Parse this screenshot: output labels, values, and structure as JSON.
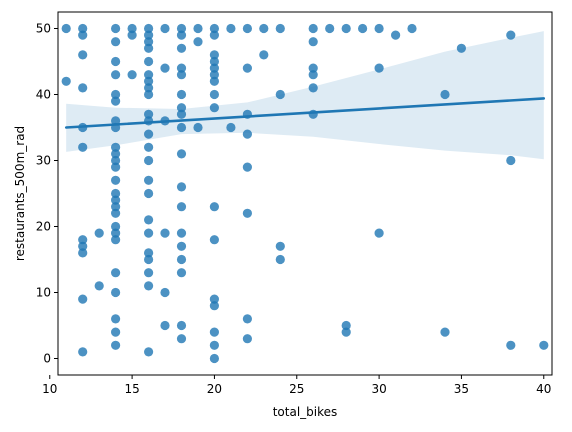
{
  "chart_data": {
    "type": "scatter",
    "title": "",
    "xlabel": "total_bikes",
    "ylabel": "restaurants_500m_rad",
    "xlim": [
      10.5,
      40.5
    ],
    "ylim": [
      -2.5,
      52.5
    ],
    "xticks": [
      10,
      15,
      20,
      25,
      30,
      35,
      40
    ],
    "yticks": [
      0,
      10,
      20,
      30,
      40,
      50
    ],
    "grid": false,
    "colors": {
      "points": "#1f77b4",
      "line": "#1f77b4",
      "band": "#1f77b4"
    },
    "point_opacity": 0.8,
    "band_opacity": 0.15,
    "regression": {
      "x": [
        11,
        40
      ],
      "y": [
        35.0,
        39.4
      ],
      "ci_upper": [
        38.6,
        49.6
      ],
      "ci_lower": [
        31.3,
        30.2
      ],
      "ci_mid_x": [
        14,
        18,
        22,
        26,
        30,
        34,
        38
      ],
      "ci_mid_upper": [
        38.0,
        37.8,
        38.8,
        41.2,
        43.8,
        46.5,
        48.6
      ],
      "ci_mid_lower": [
        32.3,
        34.0,
        34.2,
        33.6,
        32.5,
        31.5,
        30.8
      ]
    },
    "points": [
      [
        11,
        50
      ],
      [
        11,
        42
      ],
      [
        12,
        50
      ],
      [
        12,
        49
      ],
      [
        12,
        46
      ],
      [
        12,
        41
      ],
      [
        12,
        35
      ],
      [
        12,
        32
      ],
      [
        12,
        18
      ],
      [
        12,
        17
      ],
      [
        12,
        16
      ],
      [
        12,
        9
      ],
      [
        12,
        1
      ],
      [
        13,
        19
      ],
      [
        13,
        11
      ],
      [
        14,
        50
      ],
      [
        14,
        48
      ],
      [
        14,
        45
      ],
      [
        14,
        43
      ],
      [
        14,
        40
      ],
      [
        14,
        39
      ],
      [
        14,
        36
      ],
      [
        14,
        35
      ],
      [
        14,
        32
      ],
      [
        14,
        31
      ],
      [
        14,
        30
      ],
      [
        14,
        29
      ],
      [
        14,
        27
      ],
      [
        14,
        25
      ],
      [
        14,
        24
      ],
      [
        14,
        23
      ],
      [
        14,
        22
      ],
      [
        14,
        20
      ],
      [
        14,
        19
      ],
      [
        14,
        18
      ],
      [
        14,
        13
      ],
      [
        14,
        10
      ],
      [
        14,
        6
      ],
      [
        14,
        4
      ],
      [
        14,
        2
      ],
      [
        15,
        50
      ],
      [
        15,
        49
      ],
      [
        15,
        43
      ],
      [
        16,
        50
      ],
      [
        16,
        49
      ],
      [
        16,
        48
      ],
      [
        16,
        47
      ],
      [
        16,
        45
      ],
      [
        16,
        43
      ],
      [
        16,
        42
      ],
      [
        16,
        41
      ],
      [
        16,
        40
      ],
      [
        16,
        37
      ],
      [
        16,
        36
      ],
      [
        16,
        34
      ],
      [
        16,
        32
      ],
      [
        16,
        30
      ],
      [
        16,
        27
      ],
      [
        16,
        25
      ],
      [
        16,
        21
      ],
      [
        16,
        19
      ],
      [
        16,
        16
      ],
      [
        16,
        15
      ],
      [
        16,
        13
      ],
      [
        16,
        11
      ],
      [
        16,
        1
      ],
      [
        17,
        50
      ],
      [
        17,
        44
      ],
      [
        17,
        36
      ],
      [
        17,
        19
      ],
      [
        17,
        10
      ],
      [
        17,
        5
      ],
      [
        18,
        50
      ],
      [
        18,
        49
      ],
      [
        18,
        47
      ],
      [
        18,
        44
      ],
      [
        18,
        43
      ],
      [
        18,
        40
      ],
      [
        18,
        38
      ],
      [
        18,
        37
      ],
      [
        18,
        35
      ],
      [
        18,
        31
      ],
      [
        18,
        26
      ],
      [
        18,
        23
      ],
      [
        18,
        19
      ],
      [
        18,
        17
      ],
      [
        18,
        15
      ],
      [
        18,
        13
      ],
      [
        18,
        5
      ],
      [
        18,
        3
      ],
      [
        19,
        50
      ],
      [
        19,
        48
      ],
      [
        19,
        35
      ],
      [
        20,
        50
      ],
      [
        20,
        49
      ],
      [
        20,
        46
      ],
      [
        20,
        45
      ],
      [
        20,
        44
      ],
      [
        20,
        43
      ],
      [
        20,
        42
      ],
      [
        20,
        40
      ],
      [
        20,
        38
      ],
      [
        20,
        23
      ],
      [
        20,
        18
      ],
      [
        20,
        9
      ],
      [
        20,
        8
      ],
      [
        20,
        4
      ],
      [
        20,
        2
      ],
      [
        20,
        0
      ],
      [
        21,
        50
      ],
      [
        21,
        35
      ],
      [
        22,
        50
      ],
      [
        22,
        44
      ],
      [
        22,
        37
      ],
      [
        22,
        34
      ],
      [
        22,
        29
      ],
      [
        22,
        22
      ],
      [
        22,
        6
      ],
      [
        22,
        3
      ],
      [
        23,
        50
      ],
      [
        23,
        46
      ],
      [
        24,
        50
      ],
      [
        24,
        40
      ],
      [
        24,
        17
      ],
      [
        24,
        15
      ],
      [
        26,
        50
      ],
      [
        26,
        48
      ],
      [
        26,
        44
      ],
      [
        26,
        43
      ],
      [
        26,
        41
      ],
      [
        26,
        37
      ],
      [
        27,
        50
      ],
      [
        28,
        50
      ],
      [
        28,
        5
      ],
      [
        28,
        4
      ],
      [
        29,
        50
      ],
      [
        30,
        50
      ],
      [
        30,
        44
      ],
      [
        30,
        19
      ],
      [
        31,
        49
      ],
      [
        32,
        50
      ],
      [
        34,
        40
      ],
      [
        34,
        4
      ],
      [
        35,
        47
      ],
      [
        38,
        49
      ],
      [
        38,
        30
      ],
      [
        38,
        2
      ],
      [
        40,
        2
      ]
    ]
  }
}
